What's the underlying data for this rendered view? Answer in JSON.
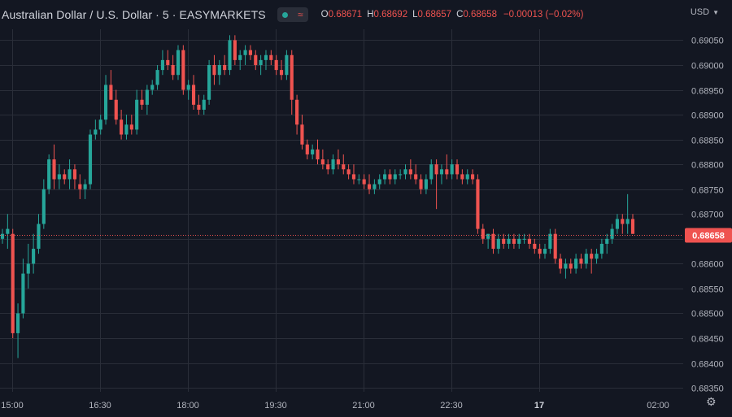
{
  "header": {
    "title": "Australian Dollar / U.S. Dollar · 5 · EASYMARKETS",
    "o_label": "O",
    "o_value": "0.68671",
    "h_label": "H",
    "h_value": "0.68692",
    "l_label": "L",
    "l_value": "0.68657",
    "c_label": "C",
    "c_value": "0.68658",
    "change": "−0.00013 (−0.02%)",
    "currency": "USD",
    "wave_icon": "≈"
  },
  "colors": {
    "background": "#131722",
    "up": "#26a69a",
    "down": "#ef5350",
    "grid": "#2a2e39",
    "axis_text": "#b2b5be"
  },
  "icons": {
    "status": "status-dot-icon",
    "settings": "gear-icon",
    "dropdown": "chevron-down-icon"
  },
  "chart_data": {
    "type": "candlestick",
    "yticks": [
      "0.69050",
      "0.69000",
      "0.68950",
      "0.68900",
      "0.68850",
      "0.68800",
      "0.68750",
      "0.68700",
      "0.68650",
      "0.68600",
      "0.68550",
      "0.68500",
      "0.68450",
      "0.68400",
      "0.68350"
    ],
    "ylim": [
      0.6834,
      0.6907
    ],
    "xticks": [
      "15:00",
      "16:30",
      "18:00",
      "19:30",
      "21:00",
      "22:30",
      "17",
      "02:00"
    ],
    "last_price": "0.68658",
    "grid": true,
    "candles": [
      [
        0.6865,
        0.6867,
        0.6864,
        0.6866
      ],
      [
        0.6866,
        0.687,
        0.6863,
        0.6867
      ],
      [
        0.6866,
        0.6867,
        0.6845,
        0.6846
      ],
      [
        0.6846,
        0.6852,
        0.6841,
        0.685
      ],
      [
        0.685,
        0.6861,
        0.6849,
        0.6858
      ],
      [
        0.6858,
        0.6864,
        0.6855,
        0.686
      ],
      [
        0.686,
        0.6866,
        0.6858,
        0.6863
      ],
      [
        0.6863,
        0.687,
        0.6862,
        0.6868
      ],
      [
        0.6868,
        0.6877,
        0.6867,
        0.6875
      ],
      [
        0.6875,
        0.6882,
        0.6874,
        0.6881
      ],
      [
        0.6881,
        0.6884,
        0.6875,
        0.6877
      ],
      [
        0.6877,
        0.688,
        0.6875,
        0.6878
      ],
      [
        0.6878,
        0.6879,
        0.6876,
        0.6877
      ],
      [
        0.6877,
        0.6881,
        0.6875,
        0.6879
      ],
      [
        0.6879,
        0.688,
        0.6875,
        0.6877
      ],
      [
        0.6876,
        0.6878,
        0.6873,
        0.6875
      ],
      [
        0.6875,
        0.6877,
        0.6873,
        0.6876
      ],
      [
        0.6876,
        0.6887,
        0.6875,
        0.6886
      ],
      [
        0.6886,
        0.6889,
        0.6885,
        0.6887
      ],
      [
        0.6887,
        0.689,
        0.6886,
        0.6889
      ],
      [
        0.6889,
        0.6898,
        0.6888,
        0.6896
      ],
      [
        0.6896,
        0.6899,
        0.6893,
        0.6893
      ],
      [
        0.6893,
        0.6895,
        0.6888,
        0.6889
      ],
      [
        0.6889,
        0.6891,
        0.6885,
        0.6886
      ],
      [
        0.6886,
        0.689,
        0.6885,
        0.6888
      ],
      [
        0.6888,
        0.689,
        0.6886,
        0.6887
      ],
      [
        0.6887,
        0.6895,
        0.6886,
        0.6893
      ],
      [
        0.6893,
        0.6895,
        0.6891,
        0.6892
      ],
      [
        0.6892,
        0.6896,
        0.689,
        0.6895
      ],
      [
        0.6895,
        0.6897,
        0.6894,
        0.6896
      ],
      [
        0.6896,
        0.69,
        0.6895,
        0.6899
      ],
      [
        0.6899,
        0.6903,
        0.6898,
        0.6901
      ],
      [
        0.6901,
        0.6903,
        0.6899,
        0.69
      ],
      [
        0.69,
        0.6902,
        0.6897,
        0.6898
      ],
      [
        0.6898,
        0.6904,
        0.6897,
        0.6903
      ],
      [
        0.6903,
        0.6904,
        0.6894,
        0.6895
      ],
      [
        0.6895,
        0.6897,
        0.6893,
        0.6896
      ],
      [
        0.6896,
        0.6898,
        0.6891,
        0.6892
      ],
      [
        0.6892,
        0.6894,
        0.689,
        0.6891
      ],
      [
        0.6891,
        0.6894,
        0.689,
        0.6893
      ],
      [
        0.6893,
        0.6901,
        0.6892,
        0.69
      ],
      [
        0.69,
        0.6902,
        0.6896,
        0.6898
      ],
      [
        0.6898,
        0.6901,
        0.6896,
        0.69
      ],
      [
        0.69,
        0.6902,
        0.6898,
        0.6899
      ],
      [
        0.6899,
        0.6906,
        0.6898,
        0.6905
      ],
      [
        0.6905,
        0.6906,
        0.69,
        0.6901
      ],
      [
        0.6901,
        0.6903,
        0.6899,
        0.6902
      ],
      [
        0.6902,
        0.6904,
        0.69,
        0.6903
      ],
      [
        0.6903,
        0.6904,
        0.6901,
        0.6902
      ],
      [
        0.6902,
        0.6903,
        0.6899,
        0.69
      ],
      [
        0.69,
        0.6902,
        0.6898,
        0.6901
      ],
      [
        0.6901,
        0.6903,
        0.6899,
        0.6902
      ],
      [
        0.6902,
        0.6903,
        0.69,
        0.6901
      ],
      [
        0.6901,
        0.6902,
        0.6898,
        0.6899
      ],
      [
        0.6899,
        0.6901,
        0.6897,
        0.6898
      ],
      [
        0.6898,
        0.6903,
        0.6897,
        0.6902
      ],
      [
        0.6902,
        0.6903,
        0.689,
        0.6893
      ],
      [
        0.6893,
        0.6894,
        0.6886,
        0.6888
      ],
      [
        0.6888,
        0.689,
        0.6883,
        0.6884
      ],
      [
        0.6884,
        0.6885,
        0.6881,
        0.6882
      ],
      [
        0.6882,
        0.6884,
        0.6881,
        0.6883
      ],
      [
        0.6883,
        0.6885,
        0.688,
        0.6881
      ],
      [
        0.6881,
        0.6883,
        0.6879,
        0.688
      ],
      [
        0.688,
        0.6881,
        0.6878,
        0.6879
      ],
      [
        0.6879,
        0.6882,
        0.6878,
        0.6881
      ],
      [
        0.6881,
        0.6883,
        0.6879,
        0.688
      ],
      [
        0.688,
        0.6882,
        0.6878,
        0.6879
      ],
      [
        0.6879,
        0.688,
        0.6877,
        0.6878
      ],
      [
        0.6878,
        0.688,
        0.6876,
        0.6877
      ],
      [
        0.6877,
        0.6878,
        0.6876,
        0.6877
      ],
      [
        0.6877,
        0.6878,
        0.6875,
        0.6876
      ],
      [
        0.6876,
        0.6878,
        0.6874,
        0.6875
      ],
      [
        0.6875,
        0.6877,
        0.6874,
        0.6876
      ],
      [
        0.6876,
        0.6878,
        0.6875,
        0.6877
      ],
      [
        0.6877,
        0.6879,
        0.6876,
        0.6878
      ],
      [
        0.6878,
        0.6879,
        0.6876,
        0.6877
      ],
      [
        0.6877,
        0.6879,
        0.6876,
        0.6878
      ],
      [
        0.6878,
        0.6879,
        0.6877,
        0.6878
      ],
      [
        0.6878,
        0.688,
        0.6877,
        0.6879
      ],
      [
        0.6879,
        0.6881,
        0.6877,
        0.6878
      ],
      [
        0.6878,
        0.688,
        0.6876,
        0.6877
      ],
      [
        0.6877,
        0.6878,
        0.6874,
        0.6875
      ],
      [
        0.6875,
        0.6878,
        0.6874,
        0.6877
      ],
      [
        0.6877,
        0.6881,
        0.6876,
        0.688
      ],
      [
        0.688,
        0.6881,
        0.6871,
        0.6878
      ],
      [
        0.6878,
        0.688,
        0.6876,
        0.6879
      ],
      [
        0.6879,
        0.6882,
        0.6877,
        0.6878
      ],
      [
        0.6878,
        0.6881,
        0.6877,
        0.688
      ],
      [
        0.688,
        0.6881,
        0.6877,
        0.6878
      ],
      [
        0.6878,
        0.6879,
        0.6876,
        0.6877
      ],
      [
        0.6877,
        0.6879,
        0.6876,
        0.6878
      ],
      [
        0.6878,
        0.6879,
        0.6876,
        0.6877
      ],
      [
        0.6877,
        0.6878,
        0.6866,
        0.6867
      ],
      [
        0.6867,
        0.6868,
        0.6864,
        0.6865
      ],
      [
        0.6865,
        0.6866,
        0.6863,
        0.6866
      ],
      [
        0.6866,
        0.6867,
        0.6862,
        0.6863
      ],
      [
        0.6863,
        0.6866,
        0.6862,
        0.6865
      ],
      [
        0.6865,
        0.6866,
        0.6863,
        0.6864
      ],
      [
        0.6864,
        0.6866,
        0.6863,
        0.6865
      ],
      [
        0.6865,
        0.6866,
        0.6863,
        0.6864
      ],
      [
        0.6864,
        0.6866,
        0.6863,
        0.6865
      ],
      [
        0.6865,
        0.6866,
        0.6864,
        0.6865
      ],
      [
        0.6865,
        0.6866,
        0.6863,
        0.6864
      ],
      [
        0.6864,
        0.6865,
        0.6862,
        0.6863
      ],
      [
        0.6863,
        0.6864,
        0.6861,
        0.6862
      ],
      [
        0.6862,
        0.6864,
        0.6861,
        0.6863
      ],
      [
        0.6863,
        0.6867,
        0.6862,
        0.6866
      ],
      [
        0.6866,
        0.6867,
        0.686,
        0.6861
      ],
      [
        0.6861,
        0.6862,
        0.6858,
        0.6859
      ],
      [
        0.6859,
        0.6861,
        0.6857,
        0.686
      ],
      [
        0.686,
        0.6861,
        0.6858,
        0.6859
      ],
      [
        0.6859,
        0.6862,
        0.6858,
        0.6861
      ],
      [
        0.6861,
        0.6862,
        0.6859,
        0.686
      ],
      [
        0.686,
        0.6863,
        0.6859,
        0.6862
      ],
      [
        0.6862,
        0.6863,
        0.6858,
        0.6861
      ],
      [
        0.6861,
        0.6863,
        0.686,
        0.6862
      ],
      [
        0.6862,
        0.6865,
        0.6861,
        0.6864
      ],
      [
        0.6864,
        0.6866,
        0.6862,
        0.6865
      ],
      [
        0.6865,
        0.6868,
        0.6864,
        0.6867
      ],
      [
        0.6867,
        0.687,
        0.6866,
        0.6869
      ],
      [
        0.6869,
        0.687,
        0.6866,
        0.6868
      ],
      [
        0.6868,
        0.6874,
        0.6866,
        0.6869
      ],
      [
        0.6869,
        0.687,
        0.6866,
        0.6866
      ]
    ]
  }
}
